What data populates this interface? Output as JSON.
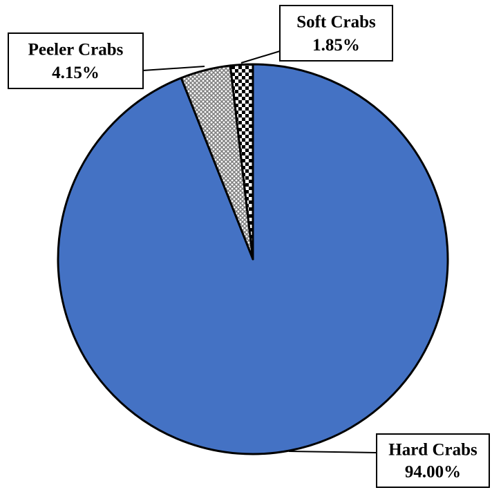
{
  "chart_data": {
    "type": "pie",
    "categories": [
      "Hard Crabs",
      "Peeler Crabs",
      "Soft Crabs"
    ],
    "values": [
      94.0,
      4.15,
      1.85
    ],
    "value_labels": [
      "94.00%",
      "4.15%",
      "1.85%"
    ],
    "colors": [
      "#4472c4",
      "#7f7f7f",
      "#000000"
    ]
  }
}
